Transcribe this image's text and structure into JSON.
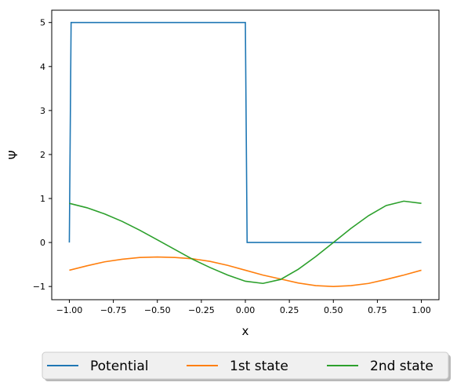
{
  "chart_data": {
    "type": "line",
    "title": "",
    "xlabel": "x",
    "ylabel": "Ψ",
    "xlim": [
      -1.1,
      1.1
    ],
    "ylim": [
      -1.3,
      5.28
    ],
    "grid": false,
    "legend_placement": "below-center",
    "x_ticks": [
      -1.0,
      -0.75,
      -0.5,
      -0.25,
      0.0,
      0.25,
      0.5,
      0.75,
      1.0
    ],
    "x_tick_labels": [
      "−1.00",
      "−0.75",
      "−0.50",
      "−0.25",
      "0.00",
      "0.25",
      "0.50",
      "0.75",
      "1.00"
    ],
    "y_ticks": [
      -1,
      0,
      1,
      2,
      3,
      4,
      5
    ],
    "y_tick_labels": [
      "−1",
      "0",
      "1",
      "2",
      "3",
      "4",
      "5"
    ],
    "series": [
      {
        "name": "Potential",
        "color": "#1f77b4",
        "x": [
          -1.0,
          -0.99,
          -0.99,
          0.0,
          0.01,
          1.0
        ],
        "y": [
          0,
          5,
          5,
          5,
          0,
          0
        ]
      },
      {
        "name": "1st state",
        "color": "#ff7f0e",
        "x": [
          -1.0,
          -0.9,
          -0.8,
          -0.7,
          -0.6,
          -0.5,
          -0.4,
          -0.3,
          -0.2,
          -0.1,
          0.0,
          0.1,
          0.2,
          0.3,
          0.4,
          0.5,
          0.6,
          0.7,
          0.8,
          0.9,
          1.0
        ],
        "y": [
          -0.63,
          -0.53,
          -0.44,
          -0.38,
          -0.34,
          -0.33,
          -0.34,
          -0.37,
          -0.43,
          -0.52,
          -0.63,
          -0.74,
          -0.83,
          -0.92,
          -0.98,
          -1.0,
          -0.98,
          -0.93,
          -0.84,
          -0.74,
          -0.63
        ]
      },
      {
        "name": "2nd state",
        "color": "#2ca02c",
        "x": [
          -1.0,
          -0.9,
          -0.8,
          -0.7,
          -0.6,
          -0.5,
          -0.4,
          -0.3,
          -0.2,
          -0.1,
          0.0,
          0.1,
          0.2,
          0.3,
          0.4,
          0.5,
          0.6,
          0.7,
          0.8,
          0.9,
          1.0
        ],
        "y": [
          0.89,
          0.79,
          0.65,
          0.48,
          0.28,
          0.06,
          -0.16,
          -0.38,
          -0.57,
          -0.74,
          -0.88,
          -0.93,
          -0.84,
          -0.61,
          -0.32,
          0.0,
          0.32,
          0.61,
          0.84,
          0.94,
          0.89
        ]
      }
    ]
  }
}
